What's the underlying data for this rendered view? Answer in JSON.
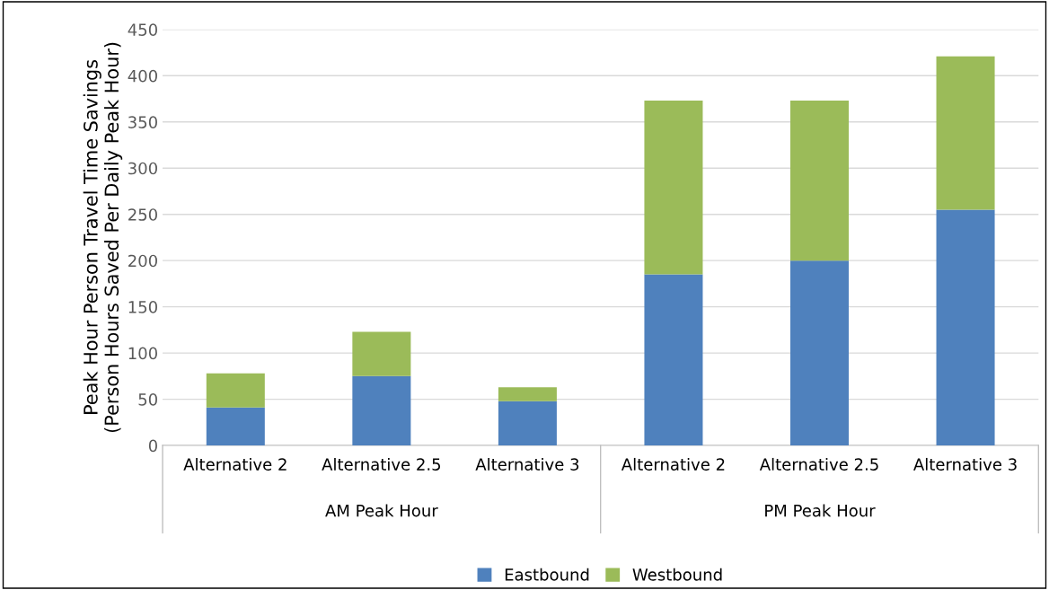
{
  "chart_data": {
    "type": "bar",
    "stacked": true,
    "categories": [
      "Alternative 2",
      "Alternative 2.5",
      "Alternative 3",
      "Alternative 2",
      "Alternative 2.5",
      "Alternative 3"
    ],
    "series": [
      {
        "name": "Eastbound",
        "color": "#4f81bd",
        "values": [
          41,
          75,
          48,
          185,
          200,
          255
        ]
      },
      {
        "name": "Westbound",
        "color": "#9bbb59",
        "values": [
          37,
          48,
          15,
          188,
          173,
          166
        ]
      }
    ],
    "ylabel": "Peak Hour Person Travel Time Savings\n(Person Hours Saved Per Daily Peak Hour)",
    "annotations": [
      "AM Peak Hour",
      "PM Peak Hour"
    ],
    "ylim": [
      0,
      450
    ],
    "yticks": [
      0,
      50,
      100,
      150,
      200,
      250,
      300,
      350,
      400,
      450
    ],
    "grid": "y",
    "legend": "bottom"
  }
}
